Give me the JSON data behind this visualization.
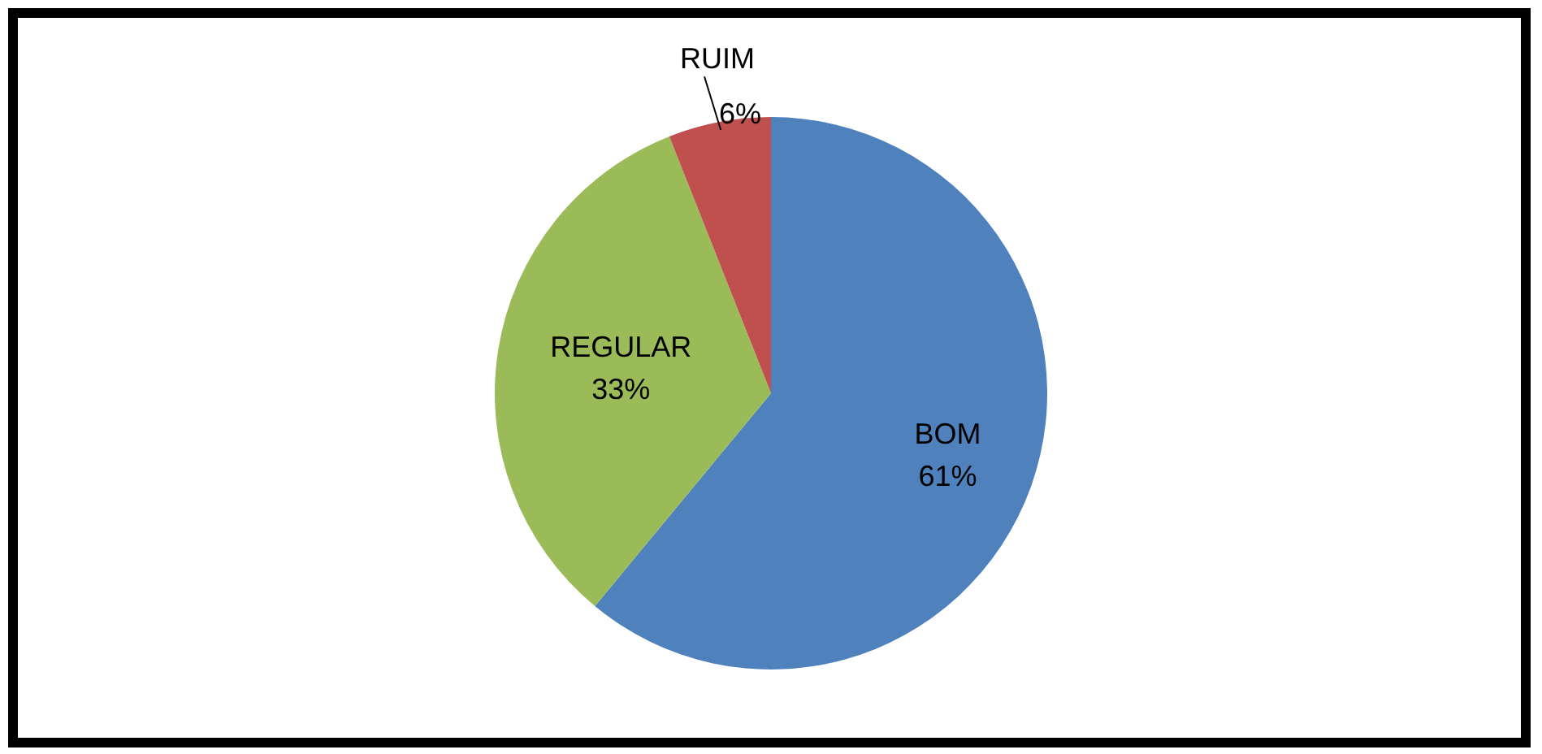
{
  "chart_data": {
    "type": "pie",
    "categories": [
      "BOM",
      "REGULAR",
      "RUIM"
    ],
    "values": [
      61,
      33,
      6
    ],
    "value_labels": [
      "61%",
      "33%",
      "6%"
    ],
    "colors": [
      "#4f81bd",
      "#9bbb59",
      "#c0504d"
    ],
    "legend": false
  }
}
